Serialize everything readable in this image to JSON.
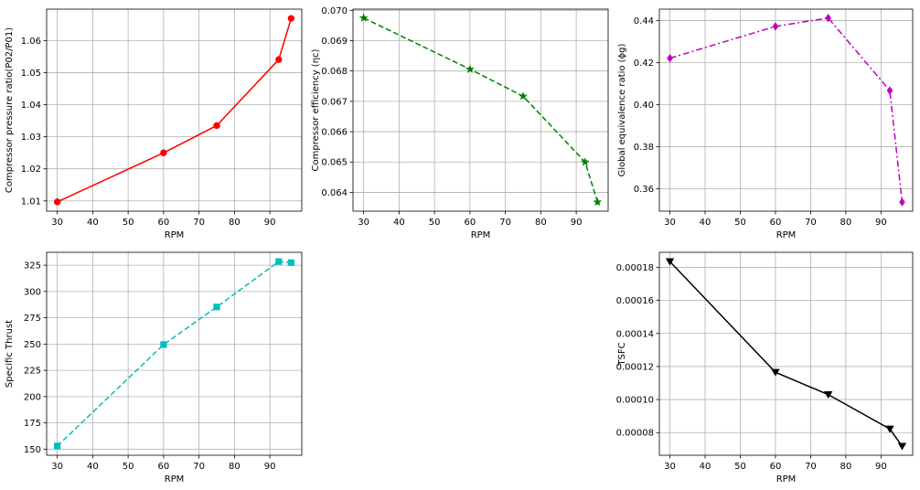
{
  "chart_data": [
    {
      "type": "line",
      "xlabel": "RPM",
      "ylabel": "Compressor pressure ratio(P02/P01)",
      "x": [
        30,
        60,
        75,
        92.5,
        96
      ],
      "values": [
        1.0097,
        1.025,
        1.0335,
        1.0541,
        1.0669
      ],
      "xlim": [
        27,
        99
      ],
      "ylim": [
        1.0068,
        1.0698
      ],
      "xticks": [
        30,
        40,
        50,
        60,
        70,
        80,
        90
      ],
      "xtick_labels": [
        "30",
        "40",
        "50",
        "60",
        "70",
        "80",
        "90"
      ],
      "yticks": [
        1.01,
        1.02,
        1.03,
        1.04,
        1.05,
        1.06
      ],
      "ytick_labels": [
        "1.01",
        "1.02",
        "1.03",
        "1.04",
        "1.05",
        "1.06"
      ],
      "grid": true,
      "color": "#ff0000",
      "linestyle": "solid",
      "marker": "circle"
    },
    {
      "type": "line",
      "xlabel": "RPM",
      "ylabel": "Compressor efficiency (ηc)",
      "x": [
        30,
        60,
        75,
        92.5,
        96
      ],
      "values": [
        0.06975,
        0.06806,
        0.06717,
        0.065,
        0.06368
      ],
      "xlim": [
        27,
        99
      ],
      "ylim": [
        0.06338,
        0.07004
      ],
      "xticks": [
        30,
        40,
        50,
        60,
        70,
        80,
        90
      ],
      "xtick_labels": [
        "30",
        "40",
        "50",
        "60",
        "70",
        "80",
        "90"
      ],
      "yticks": [
        0.064,
        0.065,
        0.066,
        0.067,
        0.068,
        0.069,
        0.07
      ],
      "ytick_labels": [
        "0.064",
        "0.065",
        "0.066",
        "0.067",
        "0.068",
        "0.069",
        "0.070"
      ],
      "grid": true,
      "color": "#008000",
      "linestyle": "dashed",
      "marker": "star"
    },
    {
      "type": "line",
      "xlabel": "RPM",
      "ylabel": "Global equivalence ratio (ϕg)",
      "x": [
        30,
        60,
        75,
        92.5,
        96
      ],
      "values": [
        0.4221,
        0.4372,
        0.4412,
        0.4067,
        0.3537
      ],
      "xlim": [
        27,
        99
      ],
      "ylim": [
        0.3494,
        0.4454
      ],
      "xticks": [
        30,
        40,
        50,
        60,
        70,
        80,
        90
      ],
      "xtick_labels": [
        "30",
        "40",
        "50",
        "60",
        "70",
        "80",
        "90"
      ],
      "yticks": [
        0.36,
        0.38,
        0.4,
        0.42,
        0.44
      ],
      "ytick_labels": [
        "0.36",
        "0.38",
        "0.40",
        "0.42",
        "0.44"
      ],
      "grid": true,
      "color": "#bf00bf",
      "linestyle": "dashdot",
      "marker": "diamond"
    },
    {
      "type": "line",
      "xlabel": "RPM",
      "ylabel": "Specific Thrust",
      "x": [
        30,
        60,
        75,
        92.5,
        96
      ],
      "values": [
        153,
        249.5,
        285.3,
        328.5,
        327.5
      ],
      "xlim": [
        27,
        99
      ],
      "ylim": [
        144.2,
        337.3
      ],
      "xticks": [
        30,
        40,
        50,
        60,
        70,
        80,
        90
      ],
      "xtick_labels": [
        "30",
        "40",
        "50",
        "60",
        "70",
        "80",
        "90"
      ],
      "yticks": [
        150,
        175,
        200,
        225,
        250,
        275,
        300,
        325
      ],
      "ytick_labels": [
        "150",
        "175",
        "200",
        "225",
        "250",
        "275",
        "300",
        "325"
      ],
      "grid": true,
      "color": "#00bfbf",
      "linestyle": "dashed",
      "marker": "square"
    },
    {
      "type": "line",
      "xlabel": "RPM",
      "ylabel": "TSFC",
      "x": [
        30,
        60,
        75,
        92.5,
        96
      ],
      "values": [
        0.0001835,
        0.0001165,
        0.000103,
        8.22e-05,
        7.18e-05
      ],
      "xlim": [
        27,
        99
      ],
      "ylim": [
        6.63e-05,
        0.0001891
      ],
      "xticks": [
        30,
        40,
        50,
        60,
        70,
        80,
        90
      ],
      "xtick_labels": [
        "30",
        "40",
        "50",
        "60",
        "70",
        "80",
        "90"
      ],
      "yticks": [
        8e-05,
        0.0001,
        0.00012,
        0.00014,
        0.00016,
        0.00018
      ],
      "ytick_labels": [
        "0.00008",
        "0.00010",
        "0.00012",
        "0.00014",
        "0.00016",
        "0.00018"
      ],
      "grid": true,
      "color": "#000000",
      "linestyle": "solid",
      "marker": "triangle-down"
    }
  ]
}
